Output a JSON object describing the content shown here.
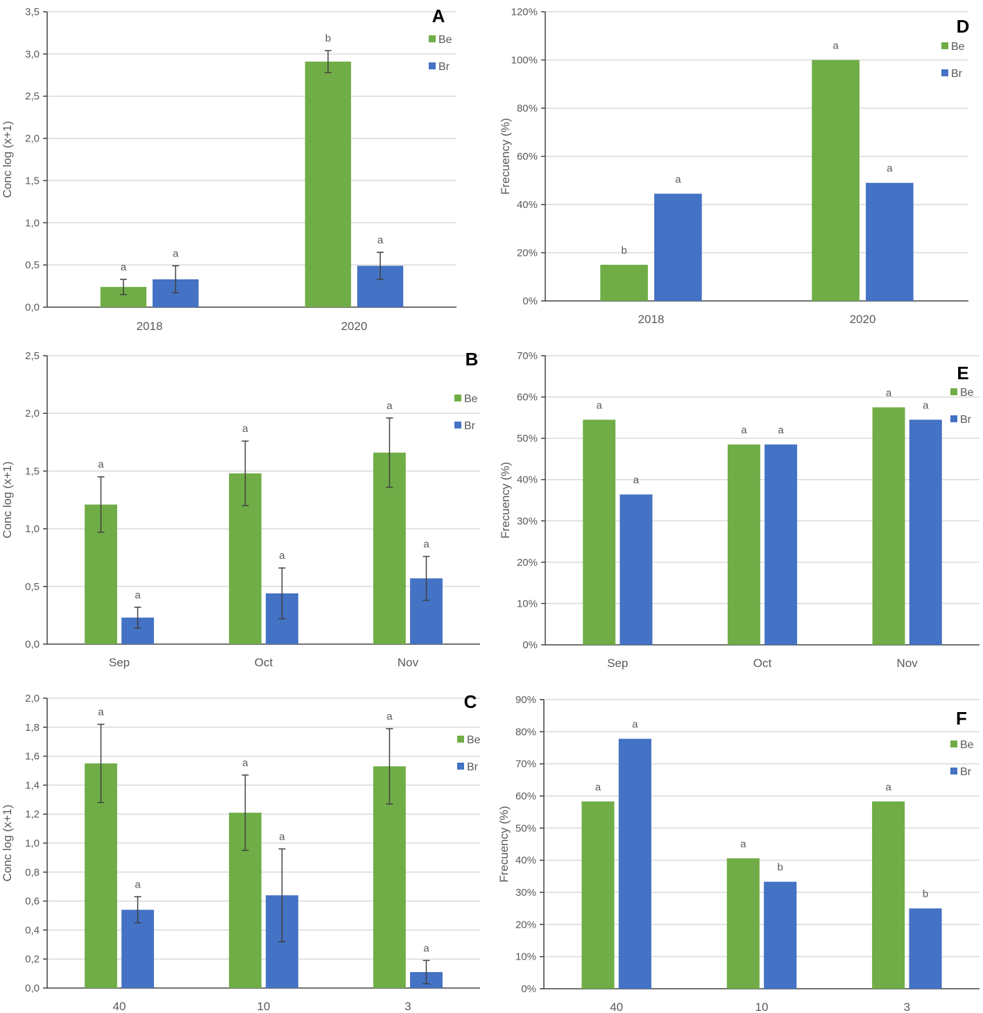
{
  "colors": {
    "Be": "#70ad47",
    "Br": "#4472c4",
    "grid": "#d9d9d9",
    "axis": "#404040",
    "text": "#595959"
  },
  "chart_data": [
    {
      "id": "A",
      "type": "bar",
      "letter": "A",
      "ylabel": "Conc log (x+1)",
      "ylim": [
        0,
        3.5
      ],
      "yticks": [
        "0,0",
        "0,5",
        "1,0",
        "1,5",
        "2,0",
        "2,5",
        "3,0",
        "3,5"
      ],
      "ytickStep": 0.5,
      "grid": true,
      "legend": "top-right",
      "categories": [
        "2018",
        "2020"
      ],
      "series": [
        {
          "name": "Be",
          "values": [
            0.24,
            2.91
          ],
          "errors": [
            0.09,
            0.13
          ],
          "sig": [
            "a",
            "b"
          ]
        },
        {
          "name": "Br",
          "values": [
            0.33,
            0.49
          ],
          "errors": [
            0.16,
            0.16
          ],
          "sig": [
            "a",
            "a"
          ]
        }
      ]
    },
    {
      "id": "B",
      "type": "bar",
      "letter": "B",
      "ylabel": "Conc log (x+1)",
      "ylim": [
        0,
        2.5
      ],
      "yticks": [
        "0,0",
        "0,5",
        "1,0",
        "1,5",
        "2,0",
        "2,5"
      ],
      "ytickStep": 0.5,
      "grid": true,
      "legend": "top-right",
      "categories": [
        "Sep",
        "Oct",
        "Nov"
      ],
      "series": [
        {
          "name": "Be",
          "values": [
            1.21,
            1.48,
            1.66
          ],
          "errors": [
            0.24,
            0.28,
            0.3
          ],
          "sig": [
            "a",
            "a",
            "a"
          ]
        },
        {
          "name": "Br",
          "values": [
            0.23,
            0.44,
            0.57
          ],
          "errors": [
            0.09,
            0.22,
            0.19
          ],
          "sig": [
            "a",
            "a",
            "a"
          ]
        }
      ]
    },
    {
      "id": "C",
      "type": "bar",
      "letter": "C",
      "ylabel": "Conc log (x+1)",
      "ylim": [
        0,
        2.0
      ],
      "yticks": [
        "0,0",
        "0,2",
        "0,4",
        "0,6",
        "0,8",
        "1,0",
        "1,2",
        "1,4",
        "1,6",
        "1,8",
        "2,0"
      ],
      "ytickStep": 0.2,
      "grid": true,
      "legend": "top-right",
      "categories": [
        "40",
        "10",
        "3"
      ],
      "series": [
        {
          "name": "Be",
          "values": [
            1.55,
            1.21,
            1.53
          ],
          "errors": [
            0.27,
            0.26,
            0.26
          ],
          "sig": [
            "a",
            "a",
            "a"
          ]
        },
        {
          "name": "Br",
          "values": [
            0.54,
            0.64,
            0.11
          ],
          "errors": [
            0.09,
            0.32,
            0.08
          ],
          "sig": [
            "a",
            "a",
            "a"
          ]
        }
      ]
    },
    {
      "id": "D",
      "type": "bar",
      "letter": "D",
      "ylabel": "Frecuency (%)",
      "ylim": [
        0,
        120
      ],
      "yticks": [
        "0%",
        "20%",
        "40%",
        "60%",
        "80%",
        "100%",
        "120%"
      ],
      "ytickStep": 20,
      "grid": true,
      "legend": "top-right",
      "categories": [
        "2018",
        "2020"
      ],
      "series": [
        {
          "name": "Be",
          "values": [
            15,
            100
          ],
          "sig": [
            "b",
            "a"
          ]
        },
        {
          "name": "Br",
          "values": [
            44.5,
            49
          ],
          "sig": [
            "a",
            "a"
          ]
        }
      ]
    },
    {
      "id": "E",
      "type": "bar",
      "letter": "E",
      "ylabel": "Frecuency (%)",
      "ylim": [
        0,
        70
      ],
      "yticks": [
        "0%",
        "10%",
        "20%",
        "30%",
        "40%",
        "50%",
        "60%",
        "70%"
      ],
      "ytickStep": 10,
      "grid": true,
      "legend": "top-right",
      "categories": [
        "Sep",
        "Oct",
        "Nov"
      ],
      "series": [
        {
          "name": "Be",
          "values": [
            54.5,
            48.5,
            57.5
          ],
          "sig": [
            "a",
            "a",
            "a"
          ]
        },
        {
          "name": "Br",
          "values": [
            36.4,
            48.5,
            54.5
          ],
          "sig": [
            "a",
            "a",
            "a"
          ]
        }
      ]
    },
    {
      "id": "F",
      "type": "bar",
      "letter": "F",
      "ylabel": "Frecuency (%)",
      "ylim": [
        0,
        90
      ],
      "yticks": [
        "0%",
        "10%",
        "20%",
        "30%",
        "40%",
        "50%",
        "60%",
        "70%",
        "80%",
        "90%"
      ],
      "ytickStep": 10,
      "grid": true,
      "legend": "top-right",
      "categories": [
        "40",
        "10",
        "3"
      ],
      "series": [
        {
          "name": "Be",
          "values": [
            58.3,
            40.6,
            58.3
          ],
          "sig": [
            "a",
            "a",
            "a"
          ]
        },
        {
          "name": "Br",
          "values": [
            77.8,
            33.3,
            25
          ],
          "sig": [
            "a",
            "b",
            "b"
          ]
        }
      ]
    }
  ]
}
